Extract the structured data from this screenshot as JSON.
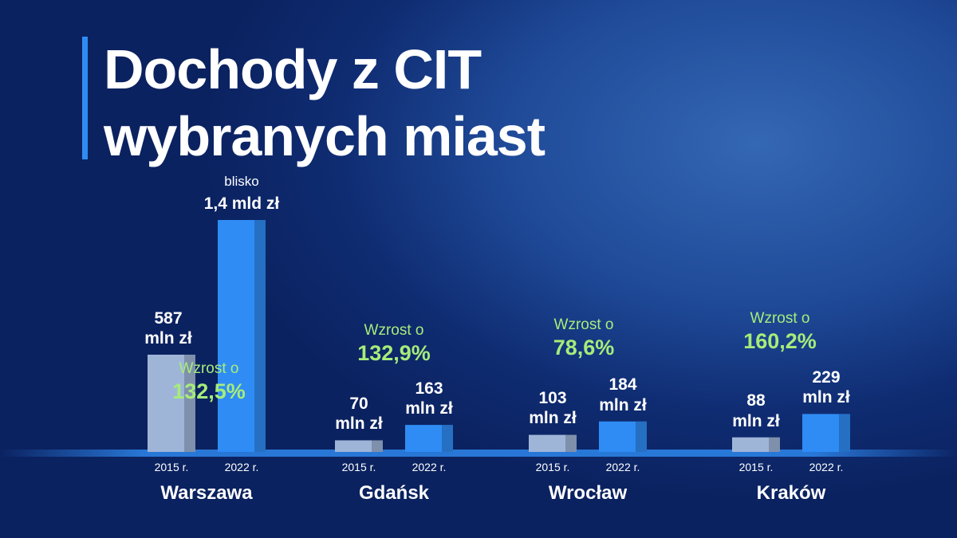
{
  "chart_data": {
    "type": "bar",
    "title_lines": [
      "Dochody z CIT",
      "wybranych miast"
    ],
    "categories": [
      "Warszawa",
      "Gdańsk",
      "Wrocław",
      "Kraków"
    ],
    "series": [
      {
        "name": "2015 r.",
        "color": "#9fb5d8",
        "values": [
          587,
          70,
          103,
          88
        ],
        "value_labels": [
          "587\nmln zł",
          "70\nmln zł",
          "103\nmln zł",
          "88\nmln zł"
        ]
      },
      {
        "name": "2022 r.",
        "color": "#2f8cf4",
        "values": [
          1400,
          163,
          184,
          229
        ],
        "value_labels": [
          "1,4 mld zł",
          "163\nmln zł",
          "184\nmln zł",
          "229\nmln zł"
        ]
      }
    ],
    "annotation": "blisko",
    "growth": {
      "prefix": "Wzrost o",
      "values": [
        132.5,
        132.9,
        78.6,
        160.2
      ],
      "value_labels": [
        "132,5%",
        "132,9%",
        "78,6%",
        "160,2%"
      ]
    }
  }
}
